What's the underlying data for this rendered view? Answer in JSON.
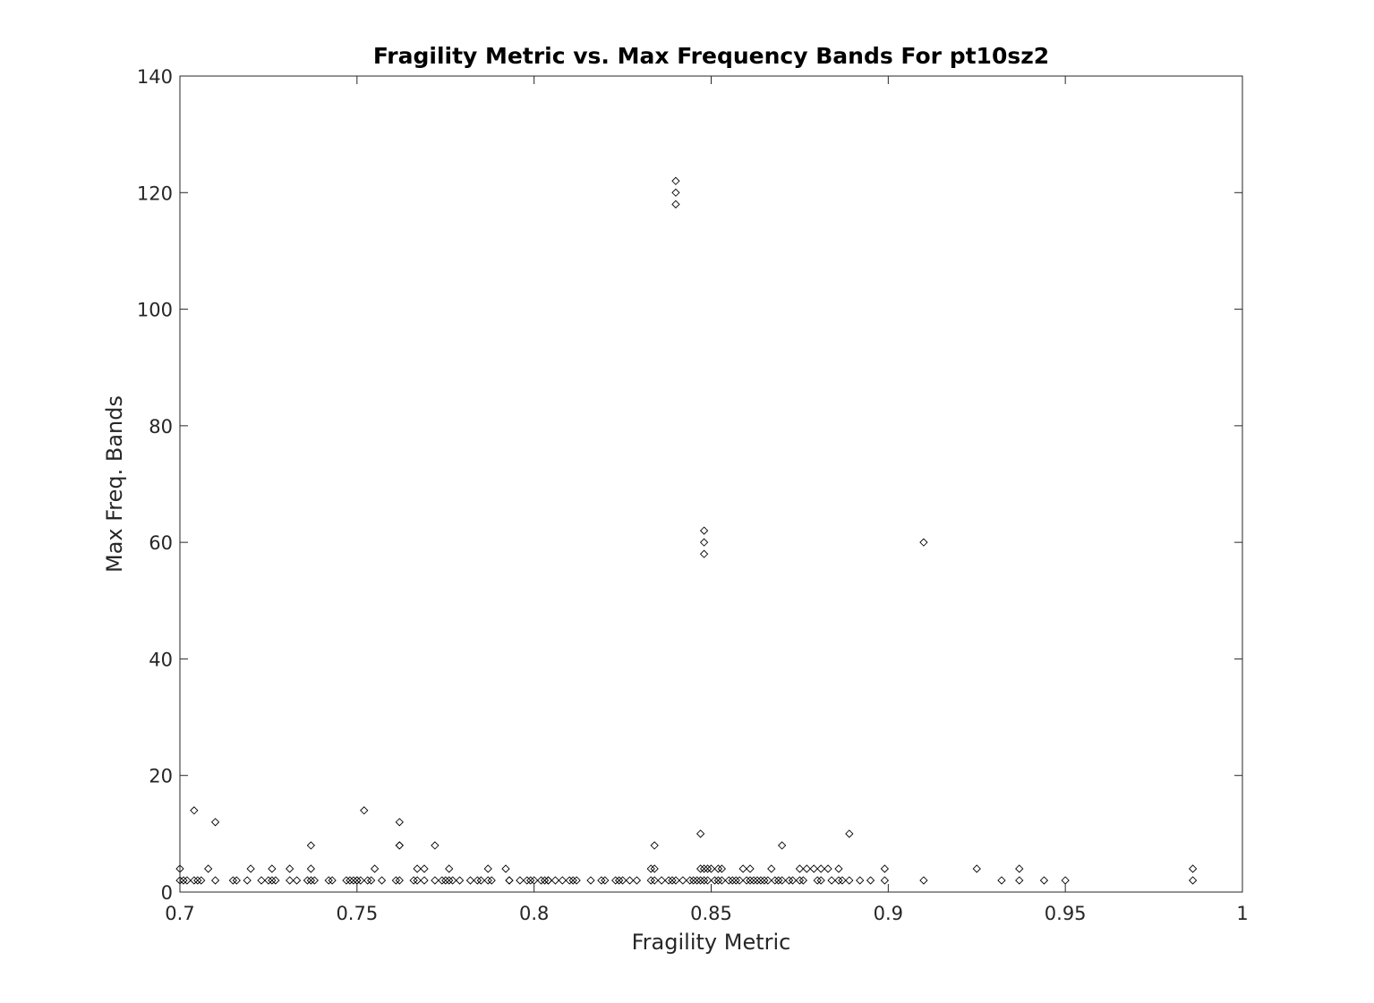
{
  "chart_data": {
    "type": "scatter",
    "title": "Fragility Metric vs. Max Frequency Bands For pt10sz2",
    "xlabel": "Fragility Metric",
    "ylabel": "Max Freq. Bands",
    "xlim": [
      0.7,
      1.0
    ],
    "ylim": [
      0,
      140
    ],
    "x_ticks": [
      0.7,
      0.75,
      0.8,
      0.85,
      0.9,
      0.95,
      1.0
    ],
    "x_tick_labels": [
      "0.7",
      "0.75",
      "0.8",
      "0.85",
      "0.9",
      "0.95",
      "1"
    ],
    "y_ticks": [
      0,
      20,
      40,
      60,
      80,
      100,
      120,
      140
    ],
    "y_tick_labels": [
      "0",
      "20",
      "40",
      "60",
      "80",
      "100",
      "120",
      "140"
    ],
    "grid": false,
    "marker": "diamond",
    "marker_color": "#000000",
    "points": [
      [
        0.7,
        4
      ],
      [
        0.7,
        2
      ],
      [
        0.701,
        2
      ],
      [
        0.702,
        2
      ],
      [
        0.704,
        14
      ],
      [
        0.704,
        2
      ],
      [
        0.705,
        2
      ],
      [
        0.706,
        2
      ],
      [
        0.708,
        4
      ],
      [
        0.71,
        12
      ],
      [
        0.71,
        2
      ],
      [
        0.715,
        2
      ],
      [
        0.716,
        2
      ],
      [
        0.719,
        2
      ],
      [
        0.72,
        4
      ],
      [
        0.723,
        2
      ],
      [
        0.725,
        2
      ],
      [
        0.726,
        4
      ],
      [
        0.726,
        2
      ],
      [
        0.727,
        2
      ],
      [
        0.731,
        4
      ],
      [
        0.731,
        2
      ],
      [
        0.733,
        2
      ],
      [
        0.736,
        2
      ],
      [
        0.737,
        8
      ],
      [
        0.737,
        4
      ],
      [
        0.737,
        2
      ],
      [
        0.738,
        2
      ],
      [
        0.742,
        2
      ],
      [
        0.743,
        2
      ],
      [
        0.747,
        2
      ],
      [
        0.748,
        2
      ],
      [
        0.749,
        2
      ],
      [
        0.75,
        2
      ],
      [
        0.75,
        2
      ],
      [
        0.751,
        2
      ],
      [
        0.752,
        14
      ],
      [
        0.753,
        2
      ],
      [
        0.754,
        2
      ],
      [
        0.755,
        4
      ],
      [
        0.757,
        2
      ],
      [
        0.761,
        2
      ],
      [
        0.762,
        2
      ],
      [
        0.762,
        12
      ],
      [
        0.762,
        8
      ],
      [
        0.762,
        8
      ],
      [
        0.766,
        2
      ],
      [
        0.767,
        4
      ],
      [
        0.767,
        2
      ],
      [
        0.769,
        4
      ],
      [
        0.769,
        2
      ],
      [
        0.772,
        8
      ],
      [
        0.772,
        2
      ],
      [
        0.774,
        2
      ],
      [
        0.775,
        2
      ],
      [
        0.776,
        4
      ],
      [
        0.776,
        2
      ],
      [
        0.777,
        2
      ],
      [
        0.779,
        2
      ],
      [
        0.782,
        2
      ],
      [
        0.784,
        2
      ],
      [
        0.785,
        2
      ],
      [
        0.787,
        4
      ],
      [
        0.787,
        2
      ],
      [
        0.788,
        2
      ],
      [
        0.792,
        4
      ],
      [
        0.793,
        2
      ],
      [
        0.793,
        2
      ],
      [
        0.796,
        2
      ],
      [
        0.798,
        2
      ],
      [
        0.799,
        2
      ],
      [
        0.8,
        2
      ],
      [
        0.802,
        2
      ],
      [
        0.803,
        2
      ],
      [
        0.804,
        2
      ],
      [
        0.804,
        2
      ],
      [
        0.806,
        2
      ],
      [
        0.808,
        2
      ],
      [
        0.81,
        2
      ],
      [
        0.811,
        2
      ],
      [
        0.812,
        2
      ],
      [
        0.816,
        2
      ],
      [
        0.819,
        2
      ],
      [
        0.82,
        2
      ],
      [
        0.823,
        2
      ],
      [
        0.824,
        2
      ],
      [
        0.825,
        2
      ],
      [
        0.827,
        2
      ],
      [
        0.829,
        2
      ],
      [
        0.833,
        4
      ],
      [
        0.833,
        2
      ],
      [
        0.834,
        2
      ],
      [
        0.834,
        8
      ],
      [
        0.834,
        4
      ],
      [
        0.836,
        2
      ],
      [
        0.838,
        2
      ],
      [
        0.839,
        2
      ],
      [
        0.84,
        122
      ],
      [
        0.84,
        120
      ],
      [
        0.84,
        118
      ],
      [
        0.84,
        2
      ],
      [
        0.842,
        2
      ],
      [
        0.844,
        2
      ],
      [
        0.845,
        2
      ],
      [
        0.846,
        2
      ],
      [
        0.847,
        10
      ],
      [
        0.847,
        4
      ],
      [
        0.847,
        2
      ],
      [
        0.848,
        62
      ],
      [
        0.848,
        60
      ],
      [
        0.848,
        58
      ],
      [
        0.848,
        2
      ],
      [
        0.848,
        4
      ],
      [
        0.849,
        4
      ],
      [
        0.849,
        2
      ],
      [
        0.85,
        4
      ],
      [
        0.851,
        2
      ],
      [
        0.852,
        4
      ],
      [
        0.852,
        2
      ],
      [
        0.853,
        4
      ],
      [
        0.853,
        2
      ],
      [
        0.855,
        2
      ],
      [
        0.856,
        2
      ],
      [
        0.857,
        2
      ],
      [
        0.858,
        2
      ],
      [
        0.859,
        4
      ],
      [
        0.86,
        2
      ],
      [
        0.861,
        4
      ],
      [
        0.861,
        2
      ],
      [
        0.862,
        2
      ],
      [
        0.863,
        2
      ],
      [
        0.864,
        2
      ],
      [
        0.865,
        2
      ],
      [
        0.866,
        2
      ],
      [
        0.867,
        4
      ],
      [
        0.868,
        2
      ],
      [
        0.869,
        2
      ],
      [
        0.87,
        8
      ],
      [
        0.87,
        2
      ],
      [
        0.872,
        2
      ],
      [
        0.873,
        2
      ],
      [
        0.875,
        4
      ],
      [
        0.875,
        2
      ],
      [
        0.876,
        2
      ],
      [
        0.877,
        4
      ],
      [
        0.879,
        4
      ],
      [
        0.88,
        2
      ],
      [
        0.881,
        4
      ],
      [
        0.881,
        2
      ],
      [
        0.883,
        4
      ],
      [
        0.884,
        2
      ],
      [
        0.886,
        4
      ],
      [
        0.886,
        2
      ],
      [
        0.887,
        2
      ],
      [
        0.889,
        10
      ],
      [
        0.889,
        2
      ],
      [
        0.892,
        2
      ],
      [
        0.895,
        2
      ],
      [
        0.899,
        4
      ],
      [
        0.899,
        2
      ],
      [
        0.91,
        60
      ],
      [
        0.91,
        2
      ],
      [
        0.925,
        4
      ],
      [
        0.932,
        2
      ],
      [
        0.937,
        4
      ],
      [
        0.937,
        2
      ],
      [
        0.944,
        2
      ],
      [
        0.95,
        2
      ],
      [
        0.986,
        4
      ],
      [
        0.986,
        2
      ]
    ]
  }
}
